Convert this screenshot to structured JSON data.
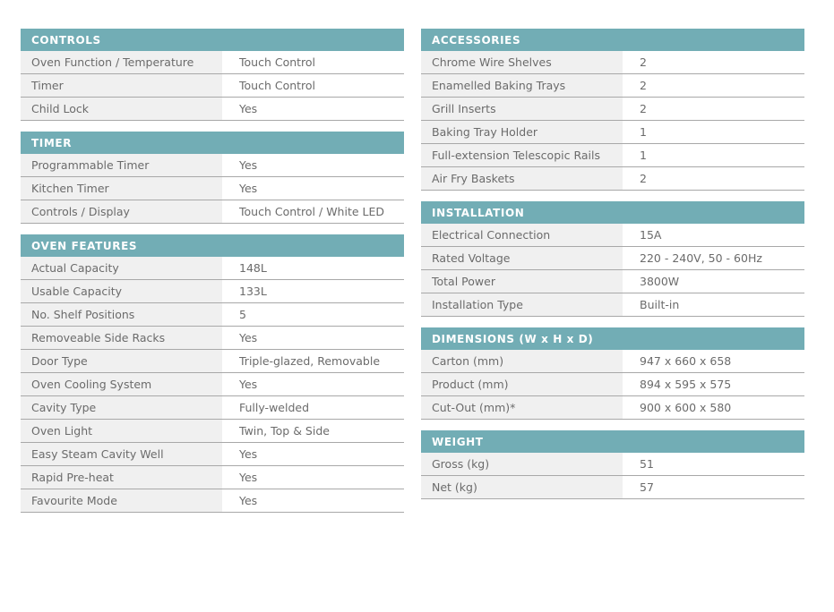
{
  "colors": {
    "header": "#72adb5",
    "label_bg": "#f0f0f0",
    "text": "#6b6b6b"
  },
  "left": [
    {
      "title": "CONTROLS",
      "rows": [
        {
          "label": "Oven Function / Temperature",
          "value": "Touch Control"
        },
        {
          "label": "Timer",
          "value": "Touch Control"
        },
        {
          "label": "Child Lock",
          "value": "Yes"
        }
      ]
    },
    {
      "title": "TIMER",
      "rows": [
        {
          "label": "Programmable Timer",
          "value": "Yes"
        },
        {
          "label": "Kitchen Timer",
          "value": "Yes"
        },
        {
          "label": "Controls / Display",
          "value": "Touch Control / White LED"
        }
      ]
    },
    {
      "title": "OVEN FEATURES",
      "rows": [
        {
          "label": "Actual Capacity",
          "value": "148L"
        },
        {
          "label": "Usable Capacity",
          "value": "133L"
        },
        {
          "label": "No. Shelf Positions",
          "value": "5"
        },
        {
          "label": "Removeable Side Racks",
          "value": "Yes"
        },
        {
          "label": "Door Type",
          "value": "Triple-glazed, Removable"
        },
        {
          "label": "Oven Cooling System",
          "value": "Yes"
        },
        {
          "label": "Cavity Type",
          "value": "Fully-welded"
        },
        {
          "label": "Oven Light",
          "value": "Twin, Top & Side"
        },
        {
          "label": "Easy Steam Cavity Well",
          "value": "Yes"
        },
        {
          "label": "Rapid Pre-heat",
          "value": "Yes"
        },
        {
          "label": "Favourite Mode",
          "value": "Yes"
        }
      ]
    }
  ],
  "right": [
    {
      "title": "ACCESSORIES",
      "rows": [
        {
          "label": "Chrome Wire Shelves",
          "value": "2"
        },
        {
          "label": "Enamelled Baking Trays",
          "value": "2"
        },
        {
          "label": "Grill Inserts",
          "value": "2"
        },
        {
          "label": "Baking Tray Holder",
          "value": "1"
        },
        {
          "label": "Full-extension Telescopic Rails",
          "value": "1"
        },
        {
          "label": "Air Fry Baskets",
          "value": "2"
        }
      ]
    },
    {
      "title": "INSTALLATION",
      "rows": [
        {
          "label": "Electrical Connection",
          "value": "15A"
        },
        {
          "label": "Rated Voltage",
          "value": "220 - 240V, 50 - 60Hz"
        },
        {
          "label": "Total Power",
          "value": "3800W"
        },
        {
          "label": "Installation Type",
          "value": "Built-in"
        }
      ]
    },
    {
      "title": "DIMENSIONS (W x H x D)",
      "rows": [
        {
          "label": "Carton (mm)",
          "value": "947 x 660 x 658"
        },
        {
          "label": "Product (mm)",
          "value": "894 x 595 x 575"
        },
        {
          "label": "Cut-Out (mm)*",
          "value": "900 x 600 x 580"
        }
      ]
    },
    {
      "title": "WEIGHT",
      "rows": [
        {
          "label": "Gross (kg)",
          "value": "51"
        },
        {
          "label": "Net (kg)",
          "value": "57"
        }
      ]
    }
  ]
}
